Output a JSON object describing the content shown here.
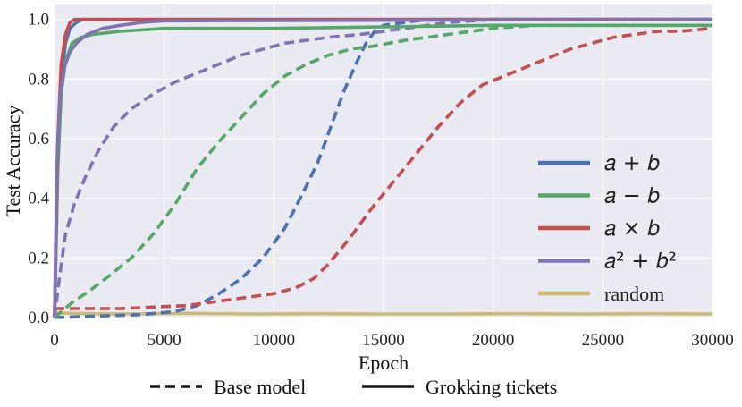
{
  "chart_data": {
    "type": "line",
    "title": "",
    "xlabel": "Epoch",
    "ylabel": "Test Accuracy",
    "xlim": [
      0,
      30000
    ],
    "ylim": [
      0,
      1.05
    ],
    "xticks": [
      0,
      5000,
      10000,
      15000,
      20000,
      25000,
      30000
    ],
    "yticks": [
      0.0,
      0.2,
      0.4,
      0.6,
      0.8,
      1.0
    ],
    "xtick_labels": [
      "0",
      "5000",
      "10000",
      "15000",
      "20000",
      "25000",
      "30000"
    ],
    "ytick_labels": [
      "0.0",
      "0.2",
      "0.4",
      "0.6",
      "0.8",
      "1.0"
    ],
    "grid": true,
    "legend_position": "center-right",
    "series": [
      {
        "name": "a+b",
        "label": "𝑎 + 𝑏",
        "variant": "base",
        "style": "dashed",
        "color": "#4c72b0",
        "x": [
          0,
          2000,
          4000,
          5500,
          6500,
          7500,
          8500,
          9500,
          10500,
          11200,
          12000,
          12600,
          13200,
          13800,
          14200,
          14600,
          15000,
          16000,
          17000,
          18000,
          30000
        ],
        "y": [
          0.0,
          0.005,
          0.01,
          0.02,
          0.04,
          0.08,
          0.13,
          0.2,
          0.3,
          0.4,
          0.52,
          0.64,
          0.76,
          0.86,
          0.92,
          0.96,
          0.98,
          0.99,
          1.0,
          1.0,
          1.0
        ]
      },
      {
        "name": "a-b",
        "label": "𝑎 − 𝑏",
        "variant": "base",
        "style": "dashed",
        "color": "#55a868",
        "x": [
          0,
          800,
          1600,
          2500,
          3500,
          4500,
          5500,
          6500,
          7500,
          8500,
          9500,
          10500,
          11500,
          12500,
          13500,
          14500,
          16000,
          18000,
          20000,
          22000,
          25000,
          30000
        ],
        "y": [
          0.0,
          0.05,
          0.09,
          0.14,
          0.2,
          0.28,
          0.38,
          0.5,
          0.59,
          0.67,
          0.75,
          0.81,
          0.85,
          0.88,
          0.9,
          0.91,
          0.93,
          0.95,
          0.97,
          0.98,
          0.98,
          0.98
        ]
      },
      {
        "name": "axb",
        "label": "𝑎 × 𝑏",
        "variant": "base",
        "style": "dashed",
        "color": "#c44e52",
        "x": [
          0,
          3000,
          6000,
          8000,
          10000,
          11000,
          11800,
          12500,
          13500,
          14500,
          15500,
          16500,
          17500,
          18500,
          19500,
          20500,
          21500,
          22500,
          23500,
          24500,
          25500,
          26500,
          27500,
          28500,
          30000
        ],
        "y": [
          0.03,
          0.03,
          0.04,
          0.06,
          0.08,
          0.1,
          0.13,
          0.18,
          0.27,
          0.37,
          0.46,
          0.55,
          0.64,
          0.72,
          0.78,
          0.81,
          0.84,
          0.87,
          0.9,
          0.92,
          0.94,
          0.95,
          0.96,
          0.96,
          0.97
        ]
      },
      {
        "name": "a2+b2",
        "label": "𝑎² + 𝑏²",
        "variant": "base",
        "style": "dashed",
        "color": "#8172b2",
        "x": [
          0,
          200,
          500,
          900,
          1400,
          2000,
          2700,
          3500,
          4500,
          5500,
          6500,
          7500,
          8500,
          9500,
          10500,
          11500,
          12500,
          14000,
          16000,
          18000,
          20000,
          30000
        ],
        "y": [
          0.0,
          0.12,
          0.28,
          0.38,
          0.47,
          0.56,
          0.64,
          0.7,
          0.75,
          0.79,
          0.82,
          0.85,
          0.88,
          0.9,
          0.92,
          0.93,
          0.94,
          0.95,
          0.97,
          0.99,
          1.0,
          1.0
        ]
      },
      {
        "name": "a+b",
        "label": "𝑎 + 𝑏",
        "variant": "ticket",
        "style": "solid",
        "color": "#4c72b0",
        "x": [
          0,
          150,
          300,
          500,
          700,
          1000,
          1300,
          1600,
          30000
        ],
        "y": [
          0.0,
          0.55,
          0.8,
          0.92,
          0.97,
          0.99,
          1.0,
          1.0,
          1.0
        ]
      },
      {
        "name": "a-b",
        "label": "𝑎 − 𝑏",
        "variant": "ticket",
        "style": "solid",
        "color": "#55a868",
        "x": [
          0,
          150,
          300,
          500,
          800,
          1200,
          1800,
          3000,
          5000,
          10000,
          15000,
          20000,
          30000
        ],
        "y": [
          0.0,
          0.5,
          0.75,
          0.86,
          0.92,
          0.94,
          0.95,
          0.96,
          0.97,
          0.97,
          0.975,
          0.98,
          0.98
        ]
      },
      {
        "name": "axb",
        "label": "𝑎 × 𝑏",
        "variant": "ticket",
        "style": "solid",
        "color": "#c44e52",
        "x": [
          0,
          150,
          300,
          500,
          700,
          900,
          1200,
          30000
        ],
        "y": [
          0.0,
          0.6,
          0.85,
          0.95,
          0.99,
          1.0,
          1.0,
          1.0
        ]
      },
      {
        "name": "a2+b2",
        "label": "𝑎² + 𝑏²",
        "variant": "ticket",
        "style": "solid",
        "color": "#8172b2",
        "x": [
          0,
          100,
          250,
          450,
          700,
          1000,
          1500,
          2200,
          3000,
          4000,
          5000,
          30000
        ],
        "y": [
          0.0,
          0.5,
          0.74,
          0.84,
          0.89,
          0.92,
          0.95,
          0.97,
          0.98,
          0.99,
          0.995,
          1.0
        ]
      },
      {
        "name": "random",
        "label": "random",
        "variant": "random",
        "style": "solid",
        "color": "#ccb974",
        "x": [
          0,
          3000,
          6000,
          9000,
          12000,
          15000,
          18000,
          21000,
          24000,
          27000,
          30000
        ],
        "y": [
          0.015,
          0.012,
          0.014,
          0.012,
          0.013,
          0.012,
          0.012,
          0.013,
          0.012,
          0.013,
          0.012
        ]
      }
    ],
    "legend": [
      {
        "label": "𝑎 + 𝑏",
        "color": "#4c72b0"
      },
      {
        "label": "𝑎 − 𝑏",
        "color": "#55a868"
      },
      {
        "label": "𝑎 × 𝑏",
        "color": "#c44e52"
      },
      {
        "label": "𝑎² + 𝑏²",
        "color": "#8172b2"
      },
      {
        "label": "random",
        "color": "#ccb974"
      }
    ],
    "style_legend": [
      {
        "label": "Base model",
        "style": "dashed"
      },
      {
        "label": "Grokking tickets",
        "style": "solid"
      }
    ]
  },
  "colors": {
    "plot_background": "#eaeaf2",
    "grid": "#ffffff"
  }
}
